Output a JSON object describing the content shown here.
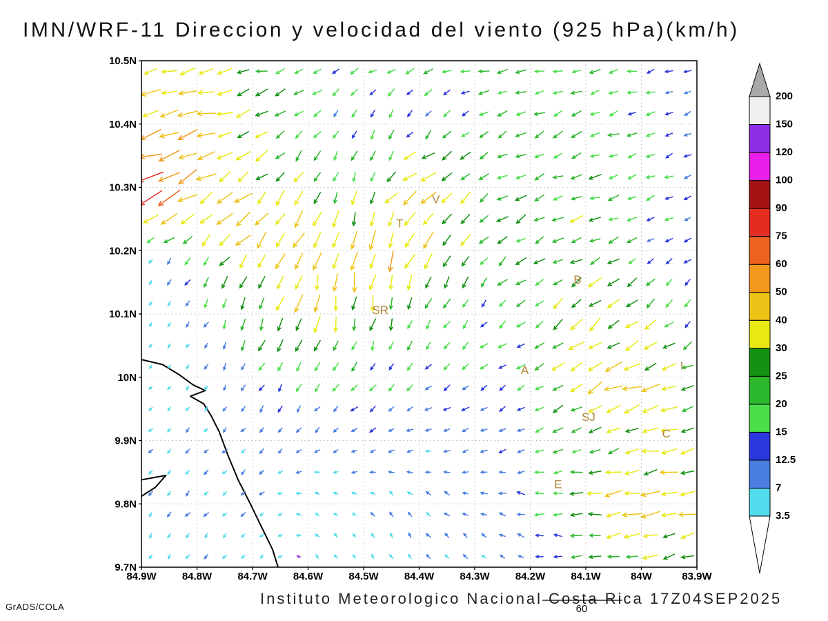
{
  "title": "IMN/WRF-11 Direccion y velocidad del viento (925 hPa)(km/h)",
  "footer": {
    "institute": "Instituto Meteorologico Nacional Costa Rica 17Z04SEP2025",
    "credit": "GrADS/COLA",
    "ref_vector_label": "60"
  },
  "chart_data": {
    "type": "vector_field_map",
    "units": "km/h",
    "level": "925 hPa",
    "lon_range": [
      -84.9,
      -83.9
    ],
    "lat_range": [
      9.7,
      10.5
    ],
    "grid_on": true,
    "background": "#ffffff",
    "x_tick_labels": [
      "84.9W",
      "84.8W",
      "84.7W",
      "84.6W",
      "84.5W",
      "84.4W",
      "84.3W",
      "84.2W",
      "84.1W",
      "84W",
      "83.9W"
    ],
    "y_tick_labels": [
      "10.5N",
      "10.4N",
      "10.3N",
      "10.2N",
      "10.1N",
      "10N",
      "9.9N",
      "9.8N",
      "9.7N"
    ],
    "colorbar": {
      "boundaries": [
        "3.5",
        "7",
        "12.5",
        "15",
        "20",
        "25",
        "30",
        "40",
        "50",
        "60",
        "75",
        "90",
        "100",
        "120",
        "150",
        "200"
      ],
      "segment_colors": [
        "#50dcec",
        "#4a7ee0",
        "#2b38dd",
        "#4ade4a",
        "#2cb82c",
        "#129112",
        "#e8e812",
        "#edc317",
        "#f2991d",
        "#ee6220",
        "#e42d21",
        "#a31313",
        "#e91ee9",
        "#8e2ee6",
        "#f0f0f0"
      ],
      "above_color": "#a9a9a9",
      "below_color": "#ffffff"
    },
    "arrow_speed_colors": [
      {
        "upto": 3.5,
        "color": "#9637d8"
      },
      {
        "upto": 7,
        "color": "#50dcec"
      },
      {
        "upto": 12.5,
        "color": "#4a7ee0"
      },
      {
        "upto": 15,
        "color": "#2b38dd"
      },
      {
        "upto": 20,
        "color": "#4ade4a"
      },
      {
        "upto": 25,
        "color": "#2cb82c"
      },
      {
        "upto": 30,
        "color": "#129112"
      },
      {
        "upto": 40,
        "color": "#e8e812"
      },
      {
        "upto": 50,
        "color": "#edc317"
      },
      {
        "upto": 60,
        "color": "#f2991d"
      },
      {
        "upto": 75,
        "color": "#ee6220"
      },
      {
        "upto": 90,
        "color": "#e42d21"
      },
      {
        "upto": 100,
        "color": "#a31313"
      },
      {
        "upto": 120,
        "color": "#e91ee9"
      },
      {
        "upto": 150,
        "color": "#8e2ee6"
      },
      {
        "upto": 200,
        "color": "#f0f0f0"
      },
      {
        "upto": 99999,
        "color": "#a9a9a9"
      }
    ],
    "stations": [
      {
        "label": "V",
        "lon": -84.37,
        "lat": 10.275
      },
      {
        "label": "T",
        "lon": -84.435,
        "lat": 10.237
      },
      {
        "label": "B",
        "lon": -84.115,
        "lat": 10.148
      },
      {
        "label": "SR",
        "lon": -84.47,
        "lat": 10.1
      },
      {
        "label": "A",
        "lon": -84.21,
        "lat": 10.005
      },
      {
        "label": "SJ",
        "lon": -84.095,
        "lat": 9.931
      },
      {
        "label": "C",
        "lon": -83.955,
        "lat": 9.905
      },
      {
        "label": "E",
        "lon": -84.15,
        "lat": 9.825
      },
      {
        "label": "I",
        "lon": -83.927,
        "lat": 10.012
      }
    ],
    "coastline": [
      [
        [
          -84.9,
          10.028
        ],
        [
          -84.862,
          10.02
        ],
        [
          -84.832,
          10.004
        ],
        [
          -84.807,
          9.988
        ],
        [
          -84.785,
          9.979
        ],
        [
          -84.812,
          9.97
        ],
        [
          -84.788,
          9.958
        ],
        [
          -84.775,
          9.94
        ],
        [
          -84.76,
          9.914
        ],
        [
          -84.744,
          9.876
        ],
        [
          -84.726,
          9.838
        ],
        [
          -84.704,
          9.8
        ],
        [
          -84.683,
          9.762
        ],
        [
          -84.664,
          9.728
        ],
        [
          -84.654,
          9.7
        ]
      ],
      [
        [
          -84.9,
          9.838
        ],
        [
          -84.856,
          9.845
        ],
        [
          -84.875,
          9.826
        ],
        [
          -84.9,
          9.812
        ]
      ]
    ],
    "wind_grid": {
      "lons": [
        -84.9,
        -84.8,
        -84.7,
        -84.6,
        -84.5,
        -84.4,
        -84.3,
        -84.2,
        -84.1,
        -84.0,
        -83.9
      ],
      "lats": [
        10.5,
        10.4,
        10.3,
        10.2,
        10.1,
        10.0,
        9.9,
        9.8,
        9.7
      ],
      "uv_kmh": [
        [
          [
            -38,
            -6
          ],
          [
            -30,
            -6
          ],
          [
            -22,
            -5
          ],
          [
            -18,
            -7
          ],
          [
            -16,
            -7
          ],
          [
            -17,
            -5
          ],
          [
            -19,
            -4
          ],
          [
            -20,
            -4
          ],
          [
            -19,
            -4
          ],
          [
            -17,
            -4
          ],
          [
            -12,
            -4
          ]
        ],
        [
          [
            -48,
            -12
          ],
          [
            -42,
            -12
          ],
          [
            -28,
            -10
          ],
          [
            -10,
            -12
          ],
          [
            -6,
            -13
          ],
          [
            -9,
            -13
          ],
          [
            -14,
            -11
          ],
          [
            -17,
            -8
          ],
          [
            -19,
            -7
          ],
          [
            -15,
            -6
          ],
          [
            -11,
            -5
          ]
        ],
        [
          [
            -80,
            -25
          ],
          [
            -45,
            -25
          ],
          [
            -28,
            -24
          ],
          [
            -14,
            -22
          ],
          [
            -6,
            -22
          ],
          [
            -35,
            -20
          ],
          [
            -20,
            -14
          ],
          [
            -22,
            -10
          ],
          [
            -24,
            -8
          ],
          [
            -17,
            -6
          ],
          [
            -10,
            -5
          ]
        ],
        [
          [
            -4,
            -4
          ],
          [
            -12,
            -16
          ],
          [
            -25,
            -30
          ],
          [
            -20,
            -40
          ],
          [
            -10,
            -44
          ],
          [
            -18,
            -42
          ],
          [
            -15,
            -18
          ],
          [
            -20,
            -12
          ],
          [
            -24,
            -10
          ],
          [
            -14,
            -8
          ],
          [
            -8,
            -6
          ]
        ],
        [
          [
            -2,
            -3
          ],
          [
            -5,
            -7
          ],
          [
            -10,
            -26
          ],
          [
            -9,
            -40
          ],
          [
            -6,
            -30
          ],
          [
            -8,
            -18
          ],
          [
            -10,
            -12
          ],
          [
            -14,
            -10
          ],
          [
            -28,
            -24
          ],
          [
            -22,
            -18
          ],
          [
            -9,
            -8
          ]
        ],
        [
          [
            -2,
            -2
          ],
          [
            -3,
            -4
          ],
          [
            -6,
            -10
          ],
          [
            -9,
            -15
          ],
          [
            -9,
            -12
          ],
          [
            -11,
            -9
          ],
          [
            -12,
            -8
          ],
          [
            -14,
            -8
          ],
          [
            -33,
            -20
          ],
          [
            -38,
            -14
          ],
          [
            -18,
            -9
          ]
        ],
        [
          [
            -4,
            -4
          ],
          [
            -5,
            -5
          ],
          [
            -6,
            -6
          ],
          [
            -8,
            -5
          ],
          [
            -9,
            -4
          ],
          [
            -9,
            -3
          ],
          [
            -10,
            -4
          ],
          [
            -12,
            -5
          ],
          [
            -19,
            -8
          ],
          [
            -33,
            -6
          ],
          [
            -38,
            -5
          ]
        ],
        [
          [
            -4,
            -6
          ],
          [
            -5,
            -6
          ],
          [
            -5,
            -5
          ],
          [
            -5,
            2
          ],
          [
            -4,
            4
          ],
          [
            -5,
            6
          ],
          [
            -8,
            4
          ],
          [
            -14,
            2
          ],
          [
            -28,
            -3
          ],
          [
            -43,
            -6
          ],
          [
            -33,
            -8
          ]
        ],
        [
          [
            -3,
            -5
          ],
          [
            -4,
            -5
          ],
          [
            -3,
            -4
          ],
          [
            -3,
            3
          ],
          [
            -3,
            5
          ],
          [
            -4,
            6
          ],
          [
            -5,
            5
          ],
          [
            -9,
            3
          ],
          [
            -19,
            0
          ],
          [
            -29,
            -5
          ],
          [
            -24,
            -8
          ]
        ]
      ]
    }
  }
}
